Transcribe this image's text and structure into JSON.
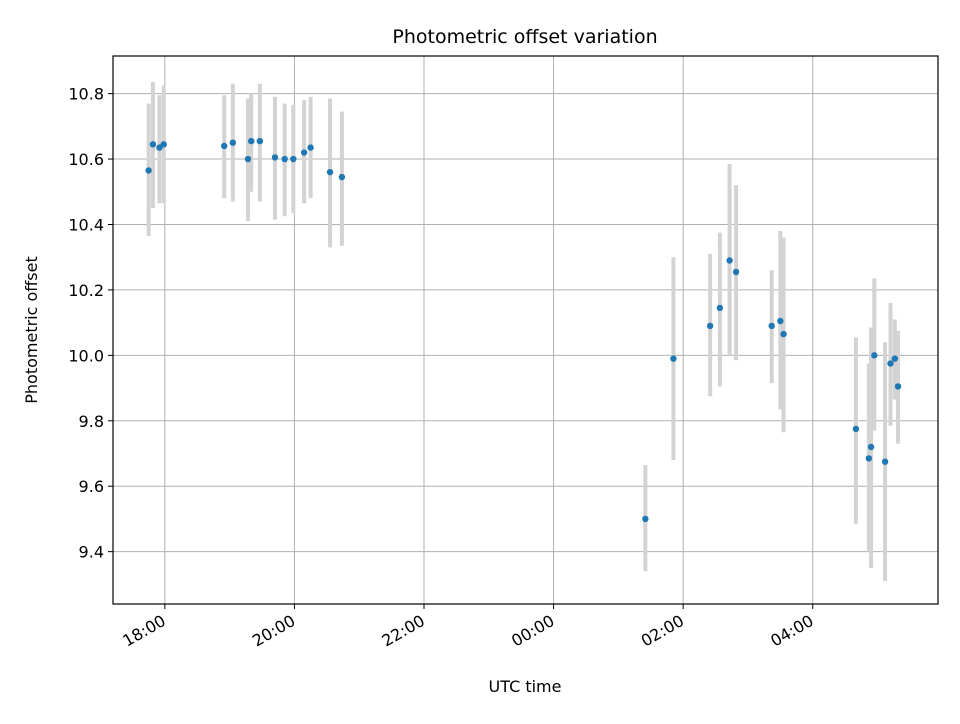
{
  "chart_data": {
    "type": "scatter",
    "title": "Photometric offset variation",
    "xlabel": "UTC time",
    "ylabel": "Photometric offset",
    "x_is_time": true,
    "xlim": [
      "17:12",
      "05:56"
    ],
    "ylim": [
      9.24,
      10.915
    ],
    "grid": true,
    "x_ticks": [
      {
        "time": "18:00",
        "label": "18:00"
      },
      {
        "time": "20:00",
        "label": "20:00"
      },
      {
        "time": "22:00",
        "label": "22:00"
      },
      {
        "time": "00:00",
        "label": "00:00"
      },
      {
        "time": "02:00",
        "label": "02:00"
      },
      {
        "time": "04:00",
        "label": "04:00"
      }
    ],
    "y_ticks": [
      {
        "value": 9.4,
        "label": "9.4"
      },
      {
        "value": 9.6,
        "label": "9.6"
      },
      {
        "value": 9.8,
        "label": "9.8"
      },
      {
        "value": 10.0,
        "label": "10.0"
      },
      {
        "value": 10.2,
        "label": "10.2"
      },
      {
        "value": 10.4,
        "label": "10.4"
      },
      {
        "value": 10.6,
        "label": "10.6"
      },
      {
        "value": 10.8,
        "label": "10.8"
      }
    ],
    "colors": {
      "marker": "#1f77b4",
      "errorbar": "#d3d3d3",
      "grid": "#b0b0b0"
    },
    "series": [
      {
        "points": [
          {
            "t": "17:45",
            "y": 10.565,
            "lo": 10.365,
            "hi": 10.77
          },
          {
            "t": "17:49",
            "y": 10.645,
            "lo": 10.45,
            "hi": 10.835
          },
          {
            "t": "17:55",
            "y": 10.635,
            "lo": 10.465,
            "hi": 10.795
          },
          {
            "t": "17:59",
            "y": 10.645,
            "lo": 10.465,
            "hi": 10.825
          },
          {
            "t": "18:55",
            "y": 10.64,
            "lo": 10.48,
            "hi": 10.795
          },
          {
            "t": "19:03",
            "y": 10.65,
            "lo": 10.47,
            "hi": 10.83
          },
          {
            "t": "19:17",
            "y": 10.6,
            "lo": 10.41,
            "hi": 10.785
          },
          {
            "t": "19:20",
            "y": 10.655,
            "lo": 10.5,
            "hi": 10.8
          },
          {
            "t": "19:28",
            "y": 10.655,
            "lo": 10.47,
            "hi": 10.83
          },
          {
            "t": "19:42",
            "y": 10.605,
            "lo": 10.415,
            "hi": 10.79
          },
          {
            "t": "19:51",
            "y": 10.6,
            "lo": 10.425,
            "hi": 10.77
          },
          {
            "t": "19:59",
            "y": 10.6,
            "lo": 10.435,
            "hi": 10.765
          },
          {
            "t": "20:09",
            "y": 10.62,
            "lo": 10.465,
            "hi": 10.78
          },
          {
            "t": "20:15",
            "y": 10.635,
            "lo": 10.48,
            "hi": 10.79
          },
          {
            "t": "20:33",
            "y": 10.56,
            "lo": 10.33,
            "hi": 10.785
          },
          {
            "t": "20:44",
            "y": 10.545,
            "lo": 10.335,
            "hi": 10.745
          },
          {
            "t": "01:25",
            "y": 9.5,
            "lo": 9.34,
            "hi": 9.665
          },
          {
            "t": "01:51",
            "y": 9.99,
            "lo": 9.68,
            "hi": 10.3
          },
          {
            "t": "02:25",
            "y": 10.09,
            "lo": 9.875,
            "hi": 10.31
          },
          {
            "t": "02:34",
            "y": 10.145,
            "lo": 9.905,
            "hi": 10.375
          },
          {
            "t": "02:43",
            "y": 10.29,
            "lo": 10.0,
            "hi": 10.585
          },
          {
            "t": "02:49",
            "y": 10.255,
            "lo": 9.985,
            "hi": 10.52
          },
          {
            "t": "03:22",
            "y": 10.09,
            "lo": 9.915,
            "hi": 10.26
          },
          {
            "t": "03:30",
            "y": 10.105,
            "lo": 9.835,
            "hi": 10.38
          },
          {
            "t": "03:33",
            "y": 10.065,
            "lo": 9.765,
            "hi": 10.36
          },
          {
            "t": "04:40",
            "y": 9.775,
            "lo": 9.485,
            "hi": 10.055
          },
          {
            "t": "04:52",
            "y": 9.685,
            "lo": 9.4,
            "hi": 9.975
          },
          {
            "t": "04:54",
            "y": 9.72,
            "lo": 9.35,
            "hi": 10.085
          },
          {
            "t": "04:57",
            "y": 10.0,
            "lo": 9.77,
            "hi": 10.235
          },
          {
            "t": "05:07",
            "y": 9.675,
            "lo": 9.31,
            "hi": 10.04
          },
          {
            "t": "05:12",
            "y": 9.975,
            "lo": 9.785,
            "hi": 10.16
          },
          {
            "t": "05:16",
            "y": 9.99,
            "lo": 9.865,
            "hi": 10.11
          },
          {
            "t": "05:19",
            "y": 9.905,
            "lo": 9.73,
            "hi": 10.075
          }
        ]
      }
    ]
  }
}
